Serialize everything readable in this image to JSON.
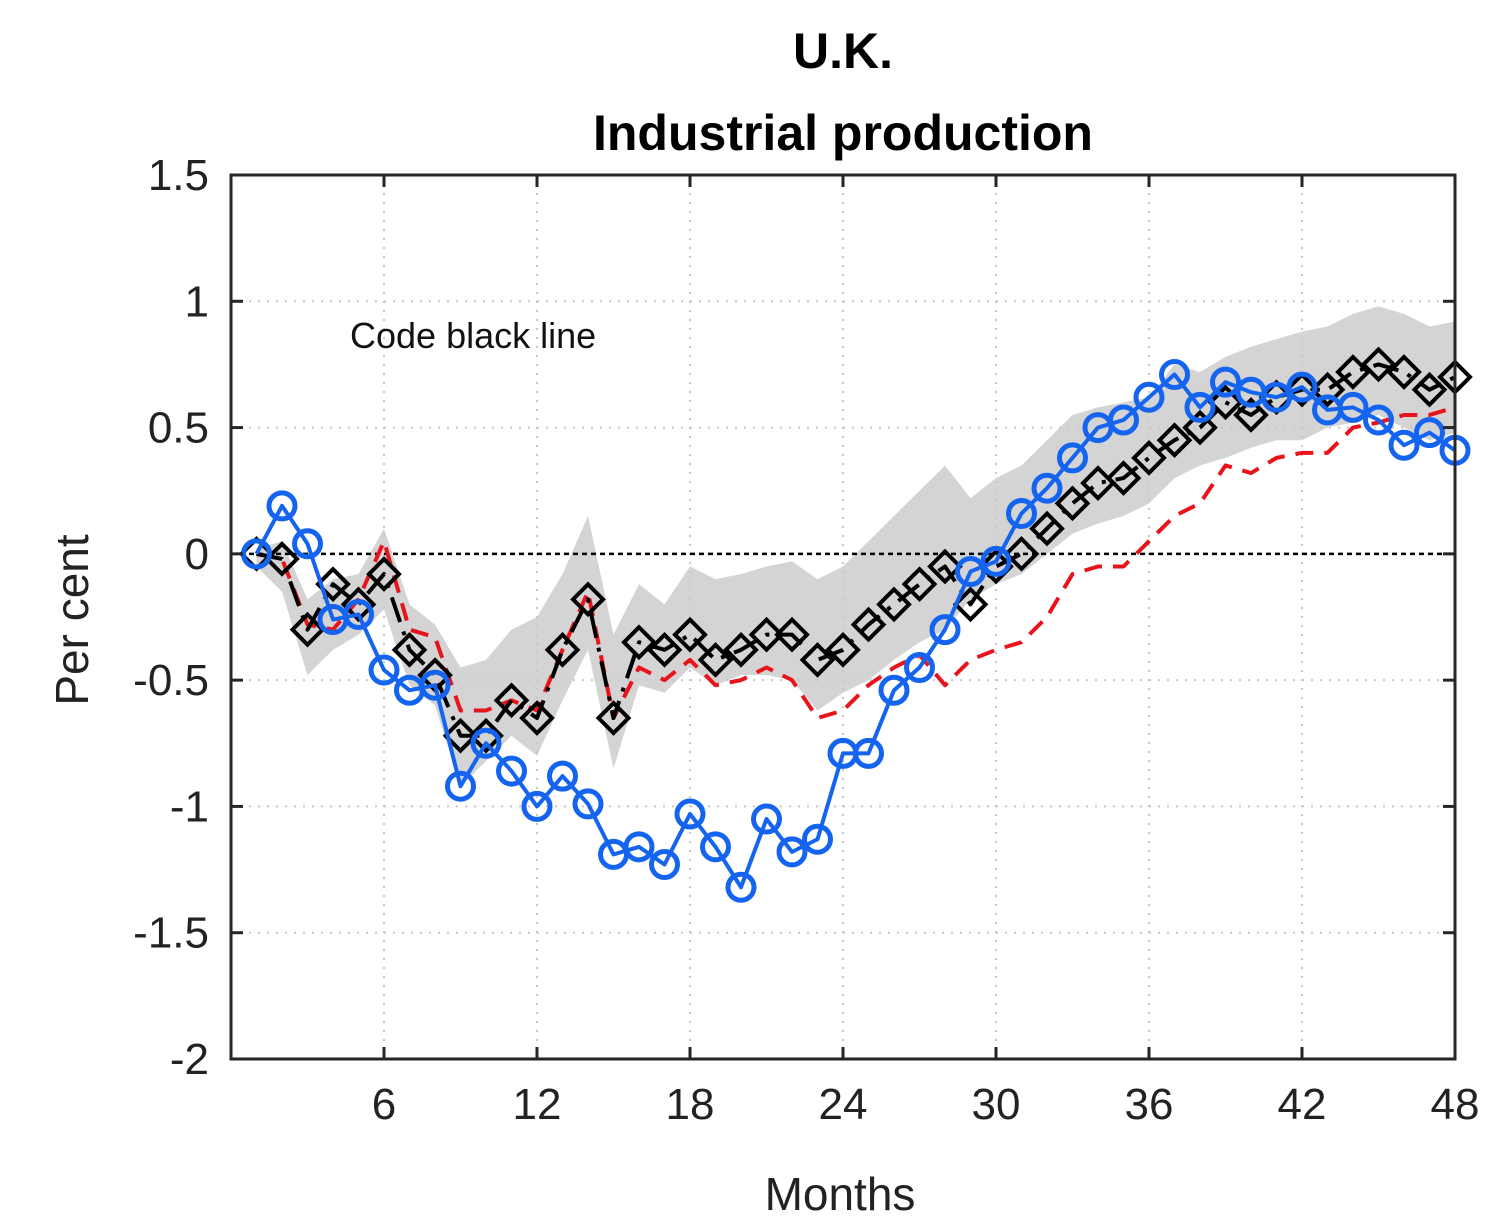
{
  "chart_data": {
    "type": "line",
    "title": [
      "U.K.",
      "Industrial production"
    ],
    "xlabel": "Months",
    "ylabel": "Per cent",
    "annotation": "Code black line",
    "xlim": [
      0,
      48
    ],
    "ylim": [
      -2,
      1.5
    ],
    "xticks": [
      6,
      12,
      18,
      24,
      30,
      36,
      42,
      48
    ],
    "yticks": [
      1.5,
      1,
      0.5,
      0,
      -0.5,
      -1,
      -1.5,
      -2
    ],
    "ytick_labels": [
      "1.5",
      "1",
      "0.5",
      "0",
      "-0.5",
      "-1",
      "-1.5",
      "-2"
    ],
    "grid": true,
    "zero_line": true,
    "x": [
      1,
      2,
      3,
      4,
      5,
      6,
      7,
      8,
      9,
      10,
      11,
      12,
      13,
      14,
      15,
      16,
      17,
      18,
      19,
      20,
      21,
      22,
      23,
      24,
      25,
      26,
      27,
      28,
      29,
      30,
      31,
      32,
      33,
      34,
      35,
      36,
      37,
      38,
      39,
      40,
      41,
      42,
      43,
      44,
      45,
      46,
      47,
      48
    ],
    "band": {
      "color": "#d4d4d4",
      "upper": [
        0.02,
        0.05,
        -0.18,
        -0.1,
        -0.08,
        0.1,
        -0.2,
        -0.28,
        -0.45,
        -0.42,
        -0.3,
        -0.25,
        -0.08,
        0.15,
        -0.32,
        -0.12,
        -0.2,
        -0.05,
        -0.1,
        -0.08,
        -0.05,
        -0.03,
        -0.1,
        -0.05,
        0.05,
        0.15,
        0.25,
        0.35,
        0.22,
        0.3,
        0.35,
        0.45,
        0.55,
        0.58,
        0.6,
        0.62,
        0.75,
        0.72,
        0.78,
        0.82,
        0.85,
        0.88,
        0.9,
        0.95,
        0.98,
        0.95,
        0.9,
        0.92
      ],
      "lower": [
        -0.05,
        -0.15,
        -0.48,
        -0.38,
        -0.32,
        -0.22,
        -0.52,
        -0.6,
        -0.92,
        -0.82,
        -0.72,
        -0.8,
        -0.58,
        -0.38,
        -0.85,
        -0.52,
        -0.55,
        -0.45,
        -0.52,
        -0.48,
        -0.48,
        -0.5,
        -0.62,
        -0.55,
        -0.5,
        -0.42,
        -0.35,
        -0.3,
        -0.18,
        -0.12,
        -0.08,
        0.0,
        0.08,
        0.12,
        0.15,
        0.2,
        0.3,
        0.35,
        0.38,
        0.42,
        0.45,
        0.45,
        0.5,
        0.52,
        0.55,
        0.5,
        0.45,
        0.48
      ]
    },
    "series": [
      {
        "color": "#e8141c",
        "style": "dashed",
        "values": [
          0.0,
          -0.02,
          -0.28,
          -0.3,
          -0.18,
          0.05,
          -0.3,
          -0.33,
          -0.62,
          -0.62,
          -0.58,
          -0.62,
          -0.38,
          -0.15,
          -0.65,
          -0.45,
          -0.5,
          -0.42,
          -0.52,
          -0.5,
          -0.45,
          -0.5,
          -0.65,
          -0.62,
          -0.52,
          -0.45,
          -0.4,
          -0.52,
          -0.42,
          -0.38,
          -0.35,
          -0.25,
          -0.08,
          -0.05,
          -0.05,
          0.05,
          0.15,
          0.2,
          0.35,
          0.32,
          0.38,
          0.4,
          0.4,
          0.5,
          0.52,
          0.55,
          0.55,
          0.58
        ]
      },
      {
        "color": "#000000",
        "style": "dash-dot",
        "marker": "diamond",
        "values": [
          0.0,
          -0.02,
          -0.3,
          -0.12,
          -0.2,
          -0.08,
          -0.38,
          -0.48,
          -0.72,
          -0.72,
          -0.58,
          -0.65,
          -0.38,
          -0.18,
          -0.65,
          -0.35,
          -0.38,
          -0.32,
          -0.42,
          -0.38,
          -0.32,
          -0.32,
          -0.42,
          -0.38,
          -0.28,
          -0.2,
          -0.12,
          -0.05,
          -0.2,
          -0.05,
          0.0,
          0.1,
          0.2,
          0.28,
          0.3,
          0.38,
          0.45,
          0.5,
          0.6,
          0.55,
          0.62,
          0.65,
          0.65,
          0.72,
          0.75,
          0.72,
          0.65,
          0.7
        ]
      },
      {
        "color": "#1464f0",
        "style": "solid",
        "marker": "circle",
        "values": [
          0.0,
          0.19,
          0.04,
          -0.26,
          -0.24,
          -0.46,
          -0.54,
          -0.52,
          -0.92,
          -0.75,
          -0.86,
          -1.0,
          -0.88,
          -0.99,
          -1.19,
          -1.16,
          -1.23,
          -1.03,
          -1.16,
          -1.32,
          -1.05,
          -1.18,
          -1.13,
          -0.79,
          -0.79,
          -0.54,
          -0.45,
          -0.3,
          -0.07,
          -0.03,
          0.16,
          0.26,
          0.38,
          0.5,
          0.53,
          0.62,
          0.71,
          0.58,
          0.68,
          0.64,
          0.62,
          0.66,
          0.57,
          0.58,
          0.53,
          0.43,
          0.48,
          0.41
        ]
      }
    ]
  }
}
